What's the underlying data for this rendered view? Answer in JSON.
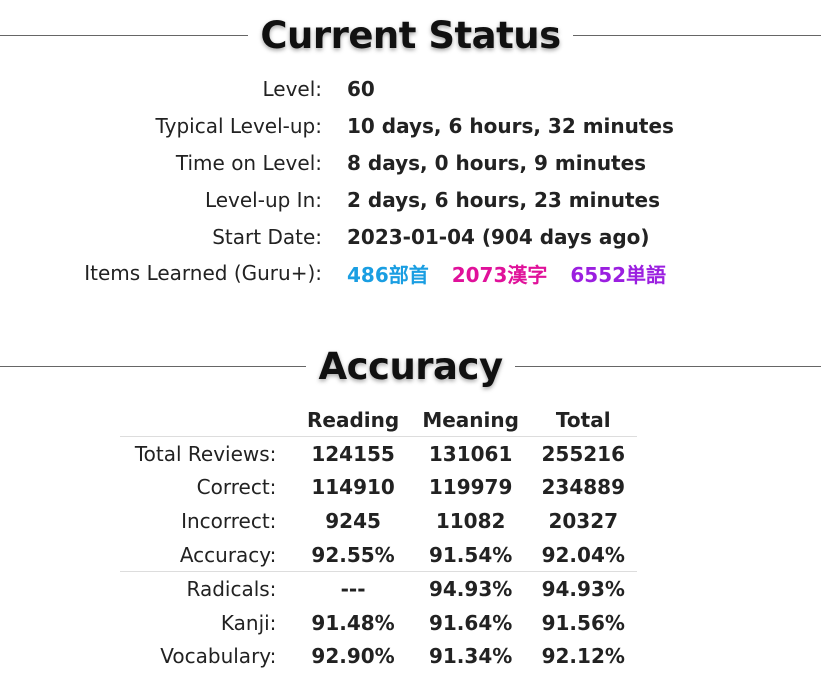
{
  "current_status": {
    "heading": "Current Status",
    "rows": [
      {
        "label": "Level:",
        "value": "60"
      },
      {
        "label": "Typical Level-up:",
        "value": "10 days, 6 hours, 32 minutes"
      },
      {
        "label": "Time on Level:",
        "value": "8 days, 0 hours, 9 minutes"
      },
      {
        "label": "Level-up In:",
        "value": "2 days, 6 hours, 23 minutes"
      },
      {
        "label": "Start Date:",
        "value": "2023-01-04 (904 days ago)"
      }
    ],
    "items_learned": {
      "label": "Items Learned (Guru+):",
      "radicals": "486部首",
      "kanji": "2073漢字",
      "vocabulary": "6552単語"
    }
  },
  "accuracy": {
    "heading": "Accuracy",
    "columns": [
      "Reading",
      "Meaning",
      "Total"
    ],
    "rows": [
      {
        "label": "Total Reviews:",
        "reading": "124155",
        "meaning": "131061",
        "total": "255216"
      },
      {
        "label": "Correct:",
        "reading": "114910",
        "meaning": "119979",
        "total": "234889"
      },
      {
        "label": "Incorrect:",
        "reading": "9245",
        "meaning": "11082",
        "total": "20327"
      },
      {
        "label": "Accuracy:",
        "reading": "92.55%",
        "meaning": "91.54%",
        "total": "92.04%"
      },
      {
        "label": "Radicals:",
        "reading": "---",
        "meaning": "94.93%",
        "total": "94.93%"
      },
      {
        "label": "Kanji:",
        "reading": "91.48%",
        "meaning": "91.64%",
        "total": "91.56%"
      },
      {
        "label": "Vocabulary:",
        "reading": "92.90%",
        "meaning": "91.34%",
        "total": "92.12%"
      }
    ]
  },
  "colors": {
    "radical": "#1a9ee2",
    "kanji": "#e0119a",
    "vocabulary": "#9b1fe0",
    "text": "#222222"
  }
}
